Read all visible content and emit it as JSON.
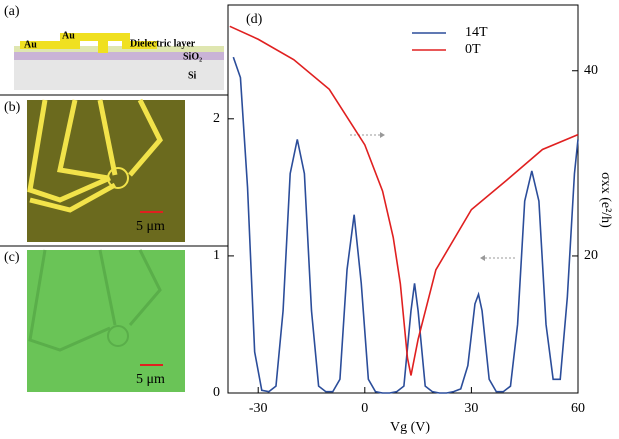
{
  "panels": {
    "a": {
      "label": "(a)",
      "texts": [
        "Au",
        "Au",
        "Dielectric layer",
        "SiO₂",
        "Si"
      ]
    },
    "b": {
      "label": "(b)",
      "scale": "5 μm"
    },
    "c": {
      "label": "(c)",
      "scale": "5 μm"
    }
  },
  "chart_data": {
    "type": "line",
    "label": "(d)",
    "x_label": "Vg (V)",
    "y2_label": "σxx (e²/h)",
    "xlim": [
      -38.5,
      60
    ],
    "xticks": [
      -30,
      0,
      30,
      60
    ],
    "ylim": [
      0,
      2.83
    ],
    "yticks": [
      0,
      1,
      2
    ],
    "y2lim": [
      5.2,
      47.1
    ],
    "y2ticks": [
      20,
      40
    ],
    "legend": "top-center",
    "series": [
      {
        "name": "14T",
        "color": "#2b4d9a",
        "x": [
          -37,
          -35,
          -33,
          -31,
          -29,
          -27,
          -25,
          -23,
          -21,
          -19,
          -17,
          -15,
          -13,
          -11,
          -9,
          -7,
          -5,
          -3,
          -1,
          1,
          3,
          5,
          7,
          9,
          11,
          13,
          14,
          15,
          17,
          19,
          21,
          23,
          25,
          27,
          29,
          31,
          32,
          33,
          35,
          37,
          39,
          41,
          43,
          45,
          47,
          49,
          51,
          53,
          55,
          57,
          59,
          60
        ],
        "values": [
          2.45,
          2.3,
          1.5,
          0.3,
          0.02,
          0.01,
          0.05,
          0.6,
          1.6,
          1.85,
          1.6,
          0.6,
          0.05,
          0.01,
          0.01,
          0.1,
          0.9,
          1.3,
          0.8,
          0.1,
          0.01,
          0,
          0,
          0.01,
          0.05,
          0.6,
          0.8,
          0.6,
          0.05,
          0.01,
          0,
          0,
          0.01,
          0.03,
          0.2,
          0.65,
          0.72,
          0.6,
          0.1,
          0.01,
          0.01,
          0.05,
          0.5,
          1.4,
          1.62,
          1.4,
          0.5,
          0.1,
          0.1,
          0.7,
          1.6,
          1.85
        ]
      },
      {
        "name": "0T",
        "color": "#e02020",
        "axis": "y2",
        "x": [
          -38,
          -30,
          -20,
          -10,
          0,
          5,
          8,
          10,
          12,
          13,
          15,
          20,
          30,
          40,
          50,
          60
        ],
        "values": [
          44.8,
          43.4,
          41.2,
          38,
          32,
          27,
          22,
          17,
          9,
          7.1,
          11,
          18.5,
          25,
          28.2,
          31.5,
          33.1
        ]
      }
    ]
  }
}
